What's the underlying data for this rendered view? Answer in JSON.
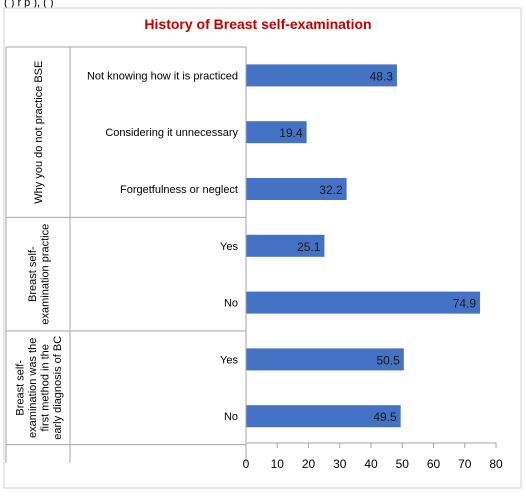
{
  "header_fragment": "(      )        r            p                                               ),                            (      )",
  "chart_data": {
    "type": "bar",
    "orientation": "horizontal",
    "title": "History of Breast self-examination",
    "title_color": "#c00000",
    "bar_color": "#4472c4",
    "xlim": [
      0,
      80
    ],
    "xticks": [
      "0",
      "10",
      "20",
      "30",
      "40",
      "50",
      "60",
      "70",
      "80"
    ],
    "grid": false,
    "legend": "none",
    "groups": [
      {
        "label_lines": [
          "Why you do not practice BSE"
        ],
        "categories": [
          "Not knowing how it is practiced",
          "Considering it unnecessary",
          "Forgetfulness or neglect"
        ],
        "values": [
          48.3,
          19.4,
          32.2
        ]
      },
      {
        "label_lines": [
          "Breast self-",
          "examination practice"
        ],
        "categories": [
          "Yes",
          "No"
        ],
        "values": [
          25.1,
          74.9
        ]
      },
      {
        "label_lines": [
          "Breast self-",
          "examination was the",
          "first method in the",
          "early diagnosis of BC"
        ],
        "categories": [
          "Yes",
          "No"
        ],
        "values": [
          50.5,
          49.5
        ]
      }
    ]
  }
}
